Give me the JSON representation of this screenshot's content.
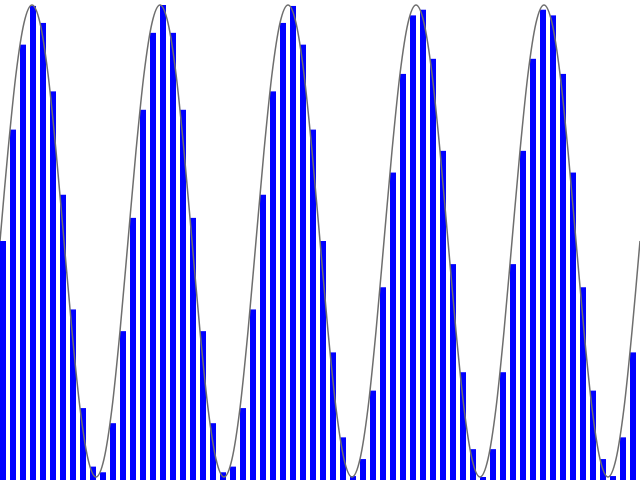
{
  "chart_data": {
    "type": "bar",
    "values": [
      0.5,
      0.736,
      0.916,
      0.998,
      0.962,
      0.817,
      0.598,
      0.355,
      0.146,
      0.022,
      0.01,
      0.114,
      0.309,
      0.549,
      0.778,
      0.941,
      1,
      0.941,
      0.778,
      0.549,
      0.309,
      0.114,
      0.01,
      0.022,
      0.146,
      0.355,
      0.598,
      0.817,
      0.962,
      0.998,
      0.916,
      0.736,
      0.5,
      0.264,
      0.084,
      0.002,
      0.038,
      0.183,
      0.402,
      0.645,
      0.854,
      0.978,
      0.99,
      0.886,
      0.691,
      0.451,
      0.222,
      0.059,
      0,
      0.059,
      0.222,
      0.451,
      0.691,
      0.886,
      0.99,
      0.978,
      0.854,
      0.645,
      0.402,
      0.183,
      0.038,
      0.002,
      0.084,
      0.264
    ],
    "color": "#0000ff",
    "curve": {
      "color": "#6e6e6e",
      "x": [
        0,
        0.8,
        1.6,
        2.4,
        3.2,
        4,
        4.8,
        5.6,
        6.4,
        7.2,
        8,
        8.8,
        9.6,
        10.4,
        11.2,
        12,
        12.8,
        13.6,
        14.4,
        15.2,
        16,
        16.8,
        17.6,
        18.4,
        19.2,
        20,
        20.8,
        21.6,
        22.4,
        23.2,
        24,
        24.8,
        25.6,
        26.4,
        27.2,
        28,
        28.8,
        29.6,
        30.4,
        31.2,
        32,
        32.8,
        33.6,
        34.4,
        35.2,
        36,
        36.8,
        37.6,
        38.4,
        39.2,
        40,
        40.8,
        41.6,
        42.4,
        43.2,
        44,
        44.8,
        45.6,
        46.4,
        47.2,
        48,
        48.8,
        49.6,
        50.4,
        51.2,
        52,
        52.8,
        53.6,
        54.4,
        55.2,
        56,
        56.8,
        57.6,
        58.4,
        59.2,
        60,
        60.8,
        61.6,
        62.4,
        63.2,
        64
      ],
      "values": [
        0.5,
        0.691,
        0.854,
        0.962,
        1,
        0.962,
        0.854,
        0.691,
        0.5,
        0.309,
        0.146,
        0.038,
        0,
        0.038,
        0.146,
        0.309,
        0.5,
        0.691,
        0.854,
        0.962,
        1,
        0.962,
        0.854,
        0.691,
        0.5,
        0.309,
        0.146,
        0.038,
        0,
        0.038,
        0.146,
        0.309,
        0.5,
        0.691,
        0.854,
        0.962,
        1,
        0.962,
        0.854,
        0.691,
        0.5,
        0.309,
        0.146,
        0.038,
        0,
        0.038,
        0.146,
        0.309,
        0.5,
        0.691,
        0.854,
        0.962,
        1,
        0.962,
        0.854,
        0.691,
        0.5,
        0.309,
        0.146,
        0.038,
        0,
        0.038,
        0.146,
        0.309,
        0.5,
        0.691,
        0.854,
        0.962,
        1,
        0.962,
        0.854,
        0.691,
        0.5,
        0.309,
        0.146,
        0.038,
        0,
        0.038,
        0.146,
        0.309,
        0.5
      ]
    },
    "xlim": [
      0,
      64
    ],
    "ylim": [
      0,
      1
    ]
  }
}
